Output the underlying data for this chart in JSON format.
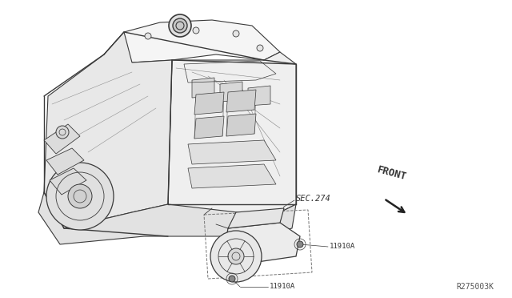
{
  "background_color": "#ffffff",
  "fig_width": 6.4,
  "fig_height": 3.72,
  "dpi": 100,
  "labels": {
    "sec274": "SEC.274",
    "front": "FRONT",
    "part1": "11910A",
    "part2": "11910A",
    "ref_code": "R275003K"
  },
  "text_color": "#333333",
  "line_color": "#3a3a3a"
}
